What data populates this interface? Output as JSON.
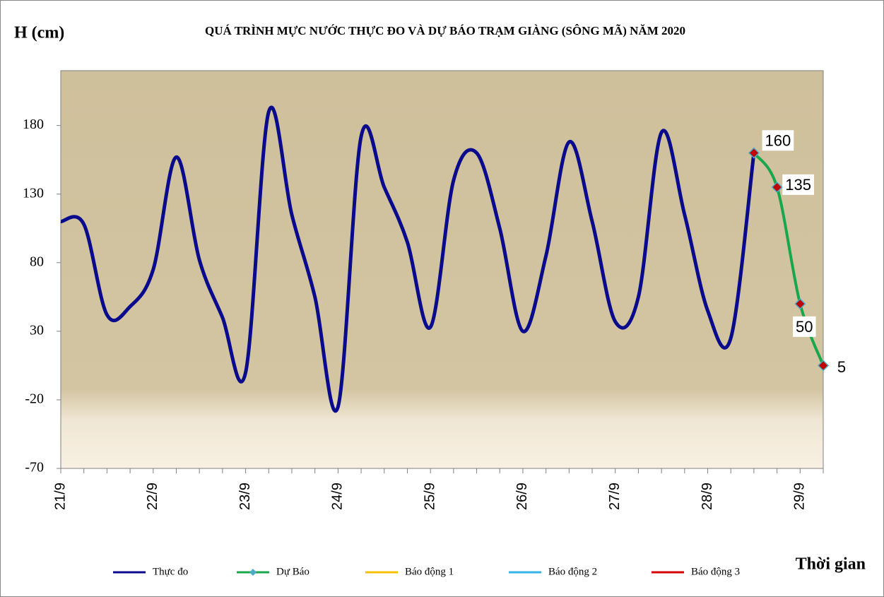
{
  "chart_data": {
    "type": "line",
    "title": "QUÁ TRÌNH MỰC NƯỚC THỰC ĐO VÀ DỰ BÁO TRẠM GIÀNG (SÔNG MÃ) NĂM 2020",
    "y_label": "H (cm)",
    "x_label": "Thời gian",
    "categories": [
      "21/9",
      null,
      null,
      null,
      "22/9",
      null,
      null,
      null,
      "23/9",
      null,
      null,
      null,
      "24/9",
      null,
      null,
      null,
      "25/9",
      null,
      null,
      null,
      "26/9",
      null,
      null,
      null,
      "27/9",
      null,
      null,
      null,
      "28/9",
      null,
      null,
      null,
      "29/9",
      null
    ],
    "series": [
      {
        "name": "Thực đo",
        "color": "#0a0a8c",
        "values": [
          110,
          108,
          42,
          48,
          75,
          157,
          82,
          40,
          0,
          190,
          115,
          55,
          -25,
          172,
          135,
          95,
          33,
          140,
          160,
          105,
          30,
          85,
          168,
          110,
          37,
          55,
          175,
          115,
          45,
          25,
          160,
          null,
          null,
          null
        ]
      },
      {
        "name": "Dự Báo",
        "color": "#1aa64a",
        "marker": "diamond",
        "data_labels": true,
        "values": [
          null,
          null,
          null,
          null,
          null,
          null,
          null,
          null,
          null,
          null,
          null,
          null,
          null,
          null,
          null,
          null,
          null,
          null,
          null,
          null,
          null,
          null,
          null,
          null,
          null,
          null,
          null,
          null,
          null,
          null,
          160,
          135,
          50,
          5
        ]
      },
      {
        "name": "Báo động 1",
        "color": "#f5c000",
        "values": [
          null,
          null,
          null,
          null,
          null,
          null,
          null,
          null,
          null,
          null,
          null,
          null,
          null,
          null,
          null,
          null,
          null,
          null,
          null,
          null,
          null,
          null,
          null,
          null,
          null,
          null,
          null,
          null,
          null,
          null,
          null,
          null,
          null,
          null
        ]
      },
      {
        "name": "Báo động 2",
        "color": "#33b5e5",
        "values": [
          null,
          null,
          null,
          null,
          null,
          null,
          null,
          null,
          null,
          null,
          null,
          null,
          null,
          null,
          null,
          null,
          null,
          null,
          null,
          null,
          null,
          null,
          null,
          null,
          null,
          null,
          null,
          null,
          null,
          null,
          null,
          null,
          null,
          null
        ]
      },
      {
        "name": "Báo động 3",
        "color": "#d40000",
        "values": [
          null,
          null,
          null,
          null,
          null,
          null,
          null,
          null,
          null,
          null,
          null,
          null,
          null,
          null,
          null,
          null,
          null,
          null,
          null,
          null,
          null,
          null,
          null,
          null,
          null,
          null,
          null,
          null,
          null,
          null,
          null,
          null,
          null,
          null
        ]
      }
    ],
    "ylim": [
      -70,
      220
    ],
    "yticks": [
      -70,
      -20,
      30,
      80,
      130,
      180
    ]
  }
}
